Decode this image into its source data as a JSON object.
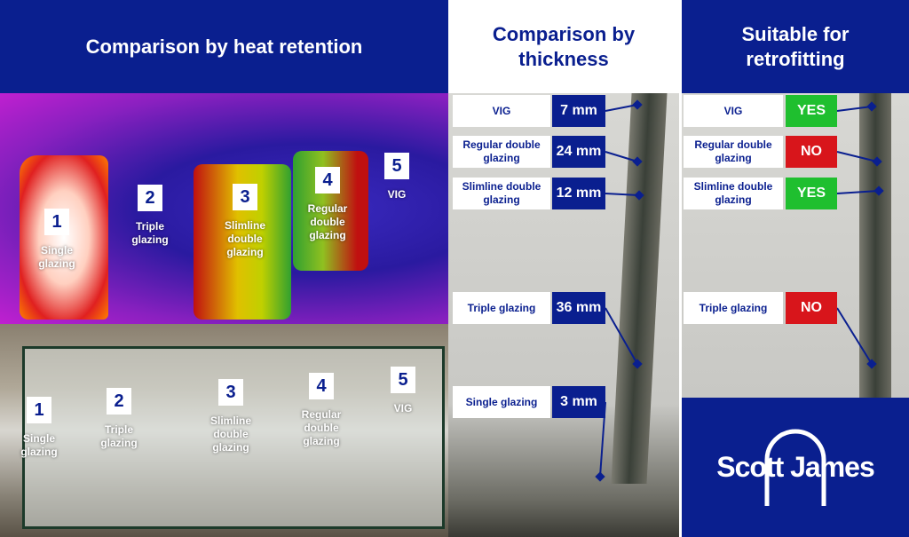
{
  "heat_retention": {
    "title": "Comparison by heat retention",
    "thermal_labels": [
      {
        "number": "1",
        "label": "Single glazing"
      },
      {
        "number": "2",
        "label": "Triple glazing"
      },
      {
        "number": "3",
        "label": "Slimline double glazing"
      },
      {
        "number": "4",
        "label": "Regular double glazing"
      },
      {
        "number": "5",
        "label": "VIG"
      }
    ],
    "photo_labels": [
      {
        "number": "1",
        "label": "Single glazing"
      },
      {
        "number": "2",
        "label": "Triple glazing"
      },
      {
        "number": "3",
        "label": "Slimline double glazing"
      },
      {
        "number": "4",
        "label": "Regular double glazing"
      },
      {
        "number": "5",
        "label": "VIG"
      }
    ]
  },
  "thickness": {
    "title": "Comparison by thickness",
    "rows": [
      {
        "label": "VIG",
        "value": "7 mm"
      },
      {
        "label": "Regular double glazing",
        "value": "24 mm"
      },
      {
        "label": "Slimline double glazing",
        "value": "12 mm"
      },
      {
        "label": "Triple glazing",
        "value": "36 mm"
      },
      {
        "label": "Single glazing",
        "value": "3 mm"
      }
    ]
  },
  "retrofitting": {
    "title": "Suitable for retrofitting",
    "rows": [
      {
        "label": "VIG",
        "value": "YES"
      },
      {
        "label": "Regular double glazing",
        "value": "NO"
      },
      {
        "label": "Slimline double glazing",
        "value": "YES"
      },
      {
        "label": "Triple glazing",
        "value": "NO"
      }
    ]
  },
  "logo": {
    "text": "Scott James"
  }
}
